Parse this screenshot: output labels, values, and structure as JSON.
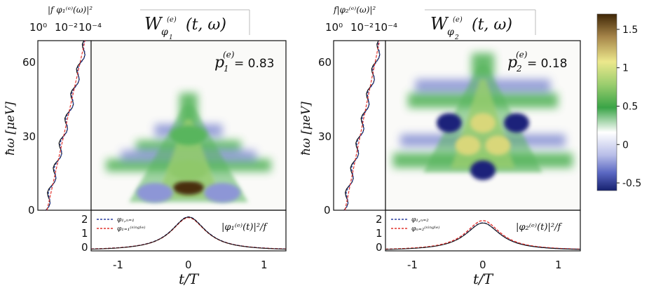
{
  "figure": {
    "panels": [
      {
        "title": "W",
        "title_sub": "φ",
        "title_subsub": "1",
        "title_sup": "(e)",
        "title_args": "(t, ω)",
        "p_label": "p",
        "p_sub": "1",
        "p_sup": "(e)",
        "p_value": "= 0.83",
        "spectrum_label": "|f φ₁⁽ᵉ⁾(ω)|²",
        "bottom_label": "|φ₁⁽ᵉ⁾(t)|²/f",
        "legend": [
          "φ₁,ₙ₌₁",
          "φ₁₌₁⁽ˢⁱⁿᵍˡᵉ⁾"
        ]
      },
      {
        "title": "W",
        "title_sub": "φ",
        "title_subsub": "2",
        "title_sup": "(e)",
        "title_args": "(t, ω)",
        "p_label": "p",
        "p_sub": "2",
        "p_sup": "(e)",
        "p_value": "= 0.18",
        "spectrum_label": "f|φ₂⁽ᵉ⁾(ω)|²",
        "bottom_label": "|φ₂⁽ᵉ⁾(t)|²/f",
        "legend": [
          "φ₁,ₙ₌₂",
          "φₙ₌₂⁽ˢⁱⁿᵍˡᵉ⁾"
        ]
      }
    ],
    "ylabel": "ħω [μeV]",
    "xlabel": "t/T",
    "top_ticks": [
      "10⁰",
      "10⁻²",
      "10⁻⁴"
    ],
    "colors": {
      "blue": "#2b3f9f",
      "red": "#e0332e",
      "black": "#111111",
      "green": "#3aa447",
      "brown": "#3f2606"
    }
  },
  "chart_data": [
    {
      "type": "heatmap",
      "title": "W_φ1^(e)(t,ω)",
      "xlabel": "t/T",
      "ylabel": "ħω [μeV]",
      "xlim": [
        -1.3,
        1.3
      ],
      "ylim": [
        0,
        68
      ],
      "x_ticks": [
        -1,
        0,
        1
      ],
      "y_ticks": [
        0,
        30,
        60
      ],
      "blobs": [
        {
          "x": 0.0,
          "y": 9,
          "value": 1.75
        },
        {
          "x": 0.0,
          "y": 16,
          "value": 0.7
        },
        {
          "x": -0.45,
          "y": 7,
          "value": -0.35
        },
        {
          "x": 0.45,
          "y": 7,
          "value": -0.35
        },
        {
          "x": 0.0,
          "y": 30,
          "value": 0.45
        }
      ],
      "bottom": {
        "series": [
          {
            "name": "φ1,n=1",
            "color": "#2b3f9f",
            "t": [
              -1.3,
              -1.0,
              -0.6,
              -0.3,
              0.0,
              0.3,
              0.6,
              1.0,
              1.3
            ],
            "y": [
              0.02,
              0.1,
              0.3,
              0.8,
              1.82,
              0.8,
              0.3,
              0.1,
              0.02
            ]
          },
          {
            "name": "φn=1 (single)",
            "color": "#e0332e",
            "t": [
              -1.3,
              -1.0,
              -0.6,
              -0.3,
              0.0,
              0.3,
              0.6,
              1.0,
              1.3
            ],
            "y": [
              0.03,
              0.12,
              0.32,
              0.82,
              1.78,
              0.82,
              0.32,
              0.12,
              0.03
            ]
          }
        ],
        "ylim": [
          0,
          2.2
        ],
        "y_ticks": [
          0,
          1,
          2
        ]
      }
    },
    {
      "type": "heatmap",
      "title": "W_φ2^(e)(t,ω)",
      "xlabel": "t/T",
      "ylabel": "ħω [μeV]",
      "xlim": [
        -1.3,
        1.3
      ],
      "ylim": [
        0,
        68
      ],
      "x_ticks": [
        -1,
        0,
        1
      ],
      "y_ticks": [
        0,
        30,
        60
      ],
      "blobs": [
        {
          "x": 0.0,
          "y": 16,
          "value": -0.55
        },
        {
          "x": -0.45,
          "y": 35,
          "value": -0.5
        },
        {
          "x": 0.45,
          "y": 35,
          "value": -0.5
        },
        {
          "x": 0.0,
          "y": 35,
          "value": 1.1
        },
        {
          "x": -0.2,
          "y": 26,
          "value": 1.0
        },
        {
          "x": 0.2,
          "y": 26,
          "value": 1.0
        }
      ],
      "bottom": {
        "series": [
          {
            "name": "φ1,n=2",
            "color": "#2b3f9f",
            "t": [
              -1.3,
              -1.0,
              -0.6,
              -0.3,
              0.0,
              0.3,
              0.6,
              1.0,
              1.3
            ],
            "y": [
              0.02,
              0.1,
              0.3,
              0.6,
              1.5,
              0.6,
              0.3,
              0.1,
              0.02
            ]
          },
          {
            "name": "φn=2 (single)",
            "color": "#e0332e",
            "t": [
              -1.3,
              -1.0,
              -0.6,
              -0.3,
              0.0,
              0.3,
              0.6,
              1.0,
              1.3
            ],
            "y": [
              0.03,
              0.1,
              0.32,
              0.62,
              1.62,
              0.62,
              0.32,
              0.1,
              0.03
            ]
          }
        ],
        "ylim": [
          0,
          2.2
        ],
        "y_ticks": [
          0,
          1,
          2
        ]
      }
    },
    {
      "type": "colorbar",
      "ticks": [
        1.5,
        1,
        0.5,
        0,
        -0.5
      ],
      "range": [
        -0.6,
        1.7
      ]
    }
  ]
}
